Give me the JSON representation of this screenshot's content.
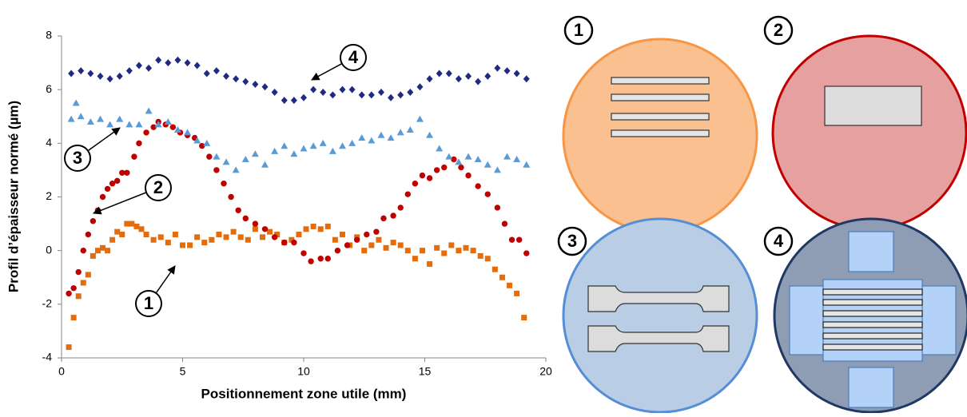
{
  "chart_data": {
    "type": "scatter",
    "xlabel": "Positionnement zone utile (mm)",
    "ylabel": "Profil d’épaisseur normé (µm)",
    "xlim": [
      0,
      20
    ],
    "ylim": [
      -4,
      8
    ],
    "xticks": [
      0,
      5,
      10,
      15,
      20
    ],
    "yticks": [
      -4,
      -2,
      0,
      2,
      4,
      6,
      8
    ],
    "series": [
      {
        "color": "#e46c0a",
        "marker": "square",
        "x": [
          0.3,
          0.5,
          0.7,
          0.9,
          1.1,
          1.3,
          1.5,
          1.7,
          1.9,
          2.1,
          2.3,
          2.5,
          2.7,
          2.9,
          3.1,
          3.3,
          3.5,
          3.8,
          4.1,
          4.4,
          4.7,
          5.0,
          5.3,
          5.6,
          5.9,
          6.2,
          6.5,
          6.8,
          7.1,
          7.4,
          7.7,
          8.0,
          8.3,
          8.6,
          8.9,
          9.2,
          9.5,
          9.8,
          10.1,
          10.4,
          10.7,
          11.0,
          11.3,
          11.6,
          11.9,
          12.2,
          12.5,
          12.8,
          13.1,
          13.4,
          13.7,
          14.0,
          14.3,
          14.6,
          14.9,
          15.2,
          15.5,
          15.8,
          16.1,
          16.4,
          16.7,
          17.0,
          17.3,
          17.6,
          17.9,
          18.2,
          18.5,
          18.8,
          19.1
        ],
        "values": [
          -3.6,
          -2.5,
          -1.7,
          -1.2,
          -0.9,
          -0.2,
          0.0,
          0.1,
          0.0,
          0.4,
          0.7,
          0.6,
          1.0,
          1.0,
          0.9,
          0.8,
          0.6,
          0.4,
          0.5,
          0.3,
          0.6,
          0.2,
          0.2,
          0.5,
          0.3,
          0.4,
          0.6,
          0.5,
          0.7,
          0.5,
          0.4,
          0.8,
          0.5,
          0.7,
          0.6,
          0.3,
          0.4,
          0.6,
          0.8,
          0.9,
          0.8,
          0.9,
          0.4,
          0.6,
          0.2,
          0.5,
          0.0,
          0.2,
          0.4,
          0.1,
          0.3,
          0.2,
          0.0,
          -0.3,
          0.0,
          -0.5,
          0.1,
          -0.1,
          0.2,
          0.0,
          0.1,
          0.0,
          -0.2,
          -0.3,
          -0.7,
          -1.0,
          -1.3,
          -1.6,
          -2.5
        ]
      },
      {
        "color": "#c00000",
        "marker": "circle",
        "x": [
          0.3,
          0.5,
          0.7,
          0.9,
          1.1,
          1.3,
          1.5,
          1.7,
          1.9,
          2.1,
          2.3,
          2.5,
          2.7,
          3.0,
          3.2,
          3.5,
          3.8,
          4.0,
          4.3,
          4.6,
          4.9,
          5.2,
          5.5,
          5.8,
          6.1,
          6.4,
          6.7,
          7.0,
          7.3,
          7.6,
          8.0,
          8.4,
          8.8,
          9.2,
          9.6,
          10.0,
          10.3,
          10.7,
          11.0,
          11.4,
          11.8,
          12.2,
          12.6,
          13.0,
          13.3,
          13.7,
          14.0,
          14.3,
          14.6,
          14.9,
          15.2,
          15.5,
          15.8,
          16.2,
          16.5,
          16.8,
          17.2,
          17.6,
          18.0,
          18.3,
          18.6,
          18.9,
          19.2
        ],
        "values": [
          -1.6,
          -1.4,
          -0.8,
          0.0,
          0.6,
          1.1,
          1.5,
          2.0,
          2.3,
          2.5,
          2.6,
          2.9,
          2.9,
          3.5,
          4.0,
          4.4,
          4.6,
          4.8,
          4.7,
          4.6,
          4.4,
          4.3,
          4.2,
          3.9,
          3.5,
          3.0,
          2.5,
          2.0,
          1.5,
          1.2,
          1.0,
          0.8,
          0.5,
          0.3,
          0.3,
          -0.1,
          -0.4,
          -0.3,
          -0.3,
          0.0,
          0.2,
          0.4,
          0.6,
          0.7,
          1.2,
          1.3,
          1.6,
          2.1,
          2.5,
          2.8,
          2.7,
          3.0,
          3.1,
          3.4,
          3.1,
          2.8,
          2.4,
          2.1,
          1.6,
          1.0,
          0.4,
          0.4,
          -0.1
        ]
      },
      {
        "color": "#5b9bd5",
        "marker": "triangle",
        "x": [
          0.4,
          0.6,
          0.8,
          1.2,
          1.6,
          2.0,
          2.4,
          2.8,
          3.2,
          3.6,
          4.0,
          4.4,
          4.8,
          5.2,
          5.6,
          6.0,
          6.4,
          6.8,
          7.2,
          7.6,
          8.0,
          8.4,
          8.8,
          9.2,
          9.6,
          10.0,
          10.4,
          10.8,
          11.2,
          11.6,
          12.0,
          12.4,
          12.8,
          13.2,
          13.6,
          14.0,
          14.4,
          14.8,
          15.2,
          15.6,
          16.0,
          16.4,
          16.8,
          17.2,
          17.6,
          18.0,
          18.4,
          18.8,
          19.2
        ],
        "values": [
          4.9,
          5.5,
          5.0,
          4.8,
          4.9,
          4.7,
          4.9,
          4.7,
          4.7,
          5.2,
          4.7,
          4.8,
          4.5,
          4.4,
          4.1,
          4.0,
          3.5,
          3.3,
          3.0,
          3.4,
          3.6,
          3.2,
          3.7,
          3.9,
          3.6,
          3.8,
          3.9,
          4.0,
          3.7,
          3.9,
          4.0,
          4.2,
          4.1,
          4.3,
          4.2,
          4.4,
          4.5,
          4.9,
          4.3,
          3.8,
          3.5,
          3.3,
          3.5,
          3.4,
          3.2,
          3.0,
          3.5,
          3.4,
          3.2
        ]
      },
      {
        "color": "#1f2a80",
        "marker": "diamond",
        "x": [
          0.4,
          0.8,
          1.2,
          1.6,
          2.0,
          2.4,
          2.8,
          3.2,
          3.6,
          4.0,
          4.4,
          4.8,
          5.2,
          5.6,
          6.0,
          6.4,
          6.8,
          7.2,
          7.6,
          8.0,
          8.4,
          8.8,
          9.2,
          9.6,
          10.0,
          10.4,
          10.8,
          11.2,
          11.6,
          12.0,
          12.4,
          12.8,
          13.2,
          13.6,
          14.0,
          14.4,
          14.8,
          15.2,
          15.6,
          16.0,
          16.4,
          16.8,
          17.2,
          17.6,
          18.0,
          18.4,
          18.8,
          19.2
        ],
        "values": [
          6.6,
          6.7,
          6.6,
          6.5,
          6.4,
          6.5,
          6.7,
          6.9,
          6.8,
          7.1,
          7.0,
          7.1,
          7.0,
          6.9,
          6.6,
          6.7,
          6.5,
          6.4,
          6.3,
          6.2,
          6.1,
          5.9,
          5.6,
          5.6,
          5.7,
          6.0,
          5.9,
          5.8,
          6.0,
          6.0,
          5.8,
          5.8,
          5.9,
          5.7,
          5.8,
          5.9,
          6.1,
          6.4,
          6.6,
          6.6,
          6.4,
          6.5,
          6.3,
          6.5,
          6.8,
          6.7,
          6.6,
          6.4
        ]
      }
    ],
    "annotations": [
      {
        "text": "1"
      },
      {
        "text": "2"
      },
      {
        "text": "3"
      },
      {
        "text": "4"
      }
    ]
  },
  "diagrams": [
    {
      "label": "1"
    },
    {
      "label": "2"
    },
    {
      "label": "3"
    },
    {
      "label": "4"
    }
  ]
}
